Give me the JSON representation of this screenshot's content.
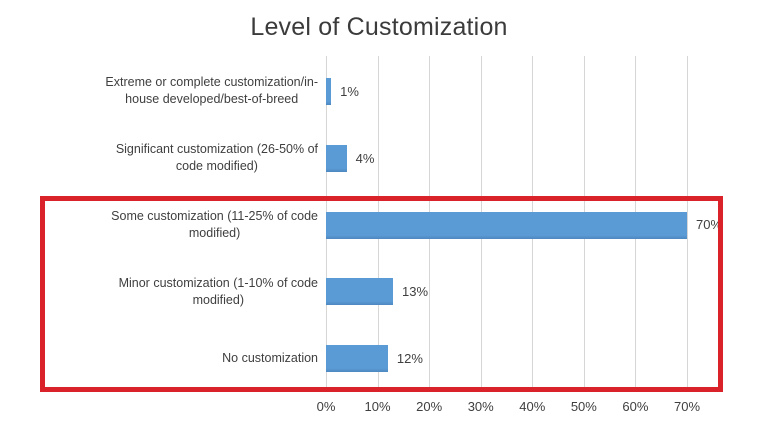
{
  "chart_data": {
    "type": "bar",
    "orientation": "horizontal",
    "title": "Level of Customization",
    "categories": [
      "Extreme or complete customization/in-house developed/best-of-breed",
      "Significant customization (26-50% of code modified)",
      "Some customization (11-25% of code modified)",
      "Minor customization (1-10% of code modified)",
      "No customization"
    ],
    "category_label_lines": [
      [
        "Extreme or complete customization/in-",
        "house developed/best-of-breed"
      ],
      [
        "Significant customization (26-50% of",
        "code modified)"
      ],
      [
        "Some customization (11-25% of code",
        "modified)"
      ],
      [
        "Minor customization (1-10% of code",
        "modified)"
      ],
      [
        "No customization"
      ]
    ],
    "values": [
      1,
      4,
      70,
      13,
      12
    ],
    "data_labels": [
      "1%",
      "4%",
      "70%",
      "13%",
      "12%"
    ],
    "x_tick_labels": [
      "0%",
      "10%",
      "20%",
      "30%",
      "40%",
      "50%",
      "60%",
      "70%"
    ],
    "xlim": [
      0,
      70
    ],
    "gridlines": "vertical",
    "legend": "none",
    "bar_color": "#5b9bd5",
    "bar_shade_color": "#4d87bf",
    "highlighted_rows": [
      2,
      3,
      4
    ],
    "highlight_color": "#d9222a"
  },
  "colors": {
    "background": "#ffffff",
    "gridline": "#d6d6d6",
    "text": "#3f3f3f",
    "title_text": "#3b3b3b"
  }
}
